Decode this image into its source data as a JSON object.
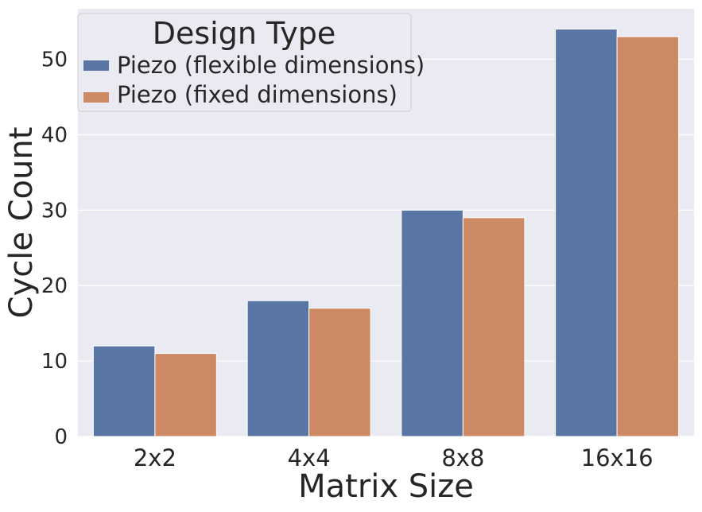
{
  "chart_data": {
    "type": "bar",
    "categories": [
      "2x2",
      "4x4",
      "8x8",
      "16x16"
    ],
    "series": [
      {
        "name": "Piezo (flexible dimensions)",
        "values": [
          12,
          18,
          30,
          54
        ],
        "color": "#5875a4"
      },
      {
        "name": "Piezo (fixed dimensions)",
        "values": [
          11,
          17,
          29,
          53
        ],
        "color": "#cc8963"
      }
    ],
    "xlabel": "Matrix Size",
    "ylabel": "Cycle Count",
    "yticks": [
      0,
      10,
      20,
      30,
      40,
      50
    ],
    "ylim": [
      0,
      56.7
    ],
    "grid": true,
    "background": "#eaeaf2",
    "legend": {
      "title": "Design Type",
      "placement": "top-left"
    }
  }
}
